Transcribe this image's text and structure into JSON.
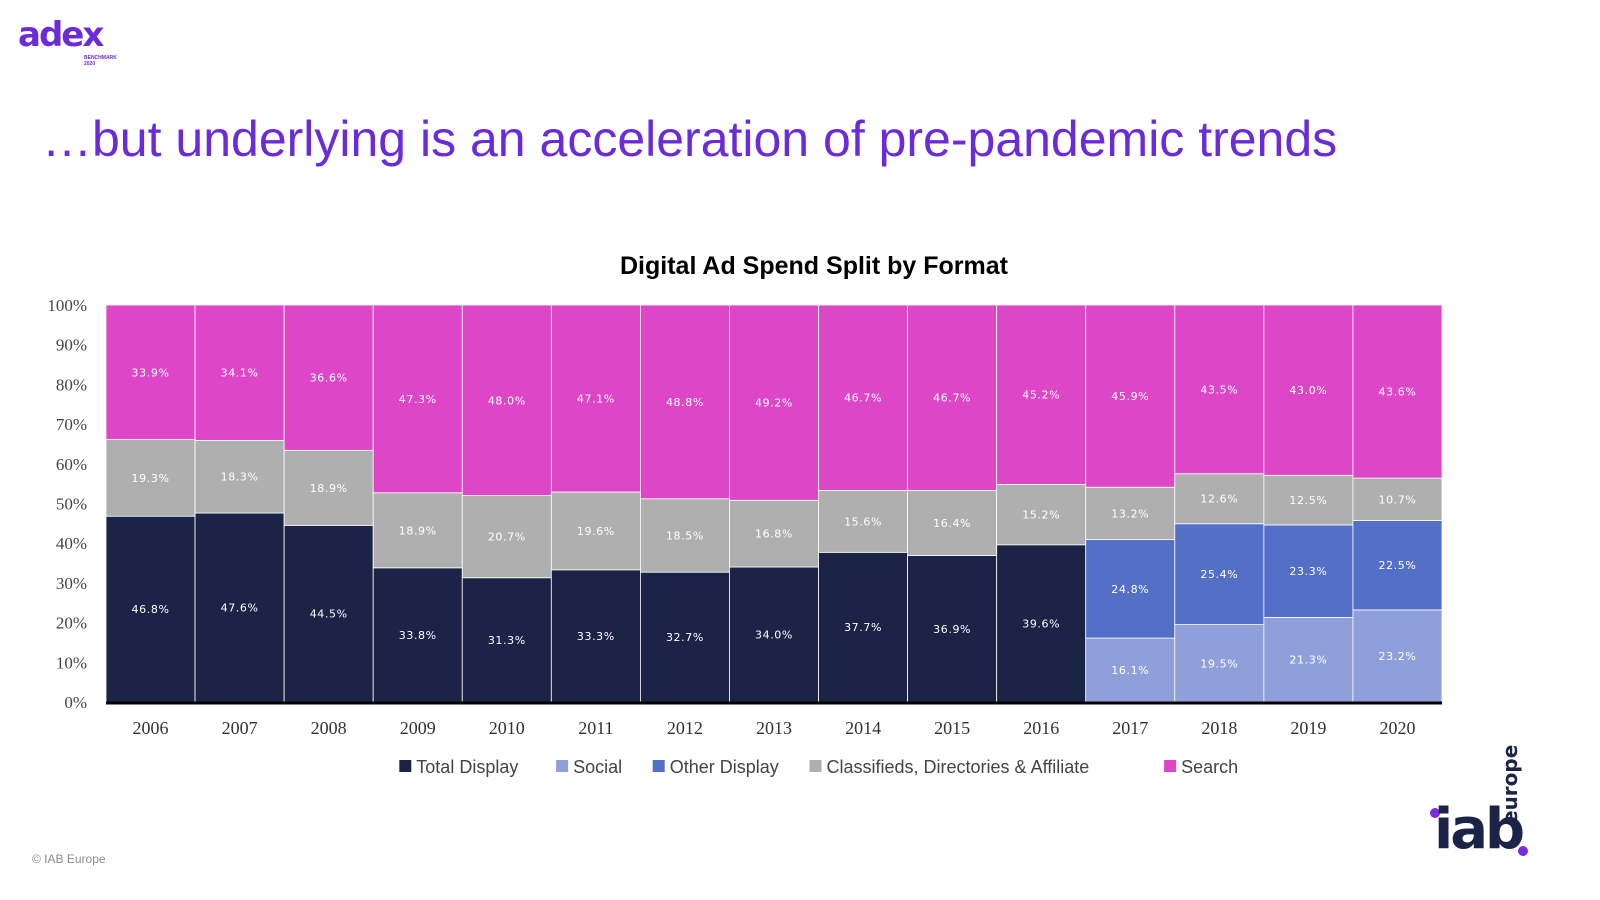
{
  "branding": {
    "adex_logo_text": "adex",
    "adex_logo_sub_1": "BENCHMARK",
    "adex_logo_sub_2": "2020",
    "iab_logo_text": "iab",
    "iab_logo_sub": "europe"
  },
  "headline": "…but underlying is an acceleration of pre-pandemic trends",
  "copyright": "© IAB Europe",
  "chart_data": {
    "type": "bar",
    "stacked": true,
    "percent": true,
    "title": "Digital Ad Spend Split by Format",
    "xlabel": "",
    "ylabel": "",
    "ylim": [
      0,
      100
    ],
    "y_ticks": [
      "0%",
      "10%",
      "20%",
      "30%",
      "40%",
      "50%",
      "60%",
      "70%",
      "80%",
      "90%",
      "100%"
    ],
    "grid": false,
    "legend_position": "bottom",
    "categories": [
      "2006",
      "2007",
      "2008",
      "2009",
      "2010",
      "2011",
      "2012",
      "2013",
      "2014",
      "2015",
      "2016",
      "2017",
      "2018",
      "2019",
      "2020"
    ],
    "series": [
      {
        "name": "Total Display",
        "color": "#1b2447",
        "values": [
          46.8,
          47.6,
          44.5,
          33.8,
          31.3,
          33.3,
          32.7,
          34.0,
          37.7,
          36.9,
          39.6,
          null,
          null,
          null,
          null
        ],
        "labels": [
          "46.8%",
          "47.6%",
          "44.5%",
          "33.8%",
          "31.3%",
          "33.3%",
          "32.7%",
          "34.0%",
          "37.7%",
          "36.9%",
          "39.6%",
          null,
          null,
          null,
          null
        ]
      },
      {
        "name": "Social",
        "color": "#8f9fda",
        "values": [
          null,
          null,
          null,
          null,
          null,
          null,
          null,
          null,
          null,
          null,
          null,
          16.1,
          19.5,
          21.3,
          23.2
        ],
        "labels": [
          null,
          null,
          null,
          null,
          null,
          null,
          null,
          null,
          null,
          null,
          null,
          "16.1%",
          "19.5%",
          "21.3%",
          "23.2%"
        ]
      },
      {
        "name": "Other Display",
        "color": "#5470c6",
        "values": [
          null,
          null,
          null,
          null,
          null,
          null,
          null,
          null,
          null,
          null,
          null,
          24.8,
          25.4,
          23.3,
          22.5
        ],
        "labels": [
          null,
          null,
          null,
          null,
          null,
          null,
          null,
          null,
          null,
          null,
          null,
          "24.8%",
          "25.4%",
          "23.3%",
          "22.5%"
        ]
      },
      {
        "name": "Classifieds, Directories & Affiliate",
        "color": "#afafaf",
        "values": [
          19.3,
          18.3,
          18.9,
          18.9,
          20.7,
          19.6,
          18.5,
          16.8,
          15.6,
          16.4,
          15.2,
          13.2,
          12.6,
          12.5,
          10.7
        ],
        "labels": [
          "19.3%",
          "18.3%",
          "18.9%",
          "18.9%",
          "20.7%",
          "19.6%",
          "18.5%",
          "16.8%",
          "15.6%",
          "16.4%",
          "15.2%",
          "13.2%",
          "12.6%",
          "12.5%",
          "10.7%"
        ]
      },
      {
        "name": "Search",
        "color": "#dd46c7",
        "values": [
          33.9,
          34.1,
          36.6,
          47.3,
          48.0,
          47.1,
          48.8,
          49.2,
          46.7,
          46.7,
          45.2,
          45.9,
          43.5,
          43.0,
          43.6
        ],
        "labels": [
          "33.9%",
          "34.1%",
          "36.6%",
          "47.3%",
          "48.0%",
          "47.1%",
          "48.8%",
          "49.2%",
          "46.7%",
          "46.7%",
          "45.2%",
          "45.9%",
          "43.5%",
          "43.0%",
          "43.6%"
        ]
      }
    ],
    "legend_order": [
      "Total Display",
      "Social",
      "Other Display",
      "Classifieds, Directories & Affiliate",
      "Search"
    ]
  }
}
